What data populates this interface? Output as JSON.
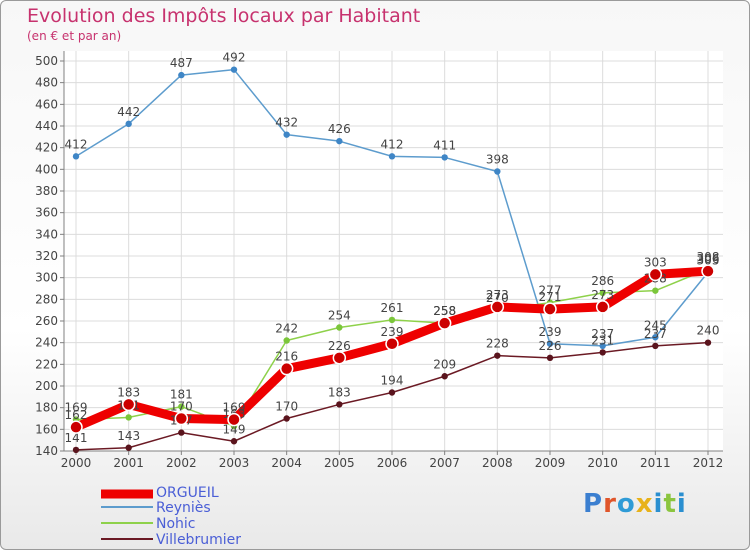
{
  "header": {
    "title": "Evolution des Impôts locaux par Habitant",
    "subtitle": "(en € et par an)"
  },
  "logo": {
    "text": "Proxiti",
    "letter_colors": [
      "#3b7fd0",
      "#e0552a",
      "#2f9bd6",
      "#e8b21a",
      "#2a8fd0",
      "#8bc53f",
      "#2a8fd0"
    ]
  },
  "colors": {
    "label": "#444444",
    "axis": "#808080",
    "grid": "#dcdcdc",
    "legend_text": "#4a5ed6"
  },
  "chart_data": {
    "type": "line",
    "x": [
      "2000",
      "2001",
      "2002",
      "2003",
      "2004",
      "2005",
      "2006",
      "2007",
      "2008",
      "2009",
      "2010",
      "2011",
      "2012"
    ],
    "ylim": [
      140,
      500
    ],
    "yticks": [
      140,
      160,
      180,
      200,
      220,
      240,
      260,
      280,
      300,
      320,
      340,
      360,
      380,
      400,
      420,
      440,
      460,
      480,
      500
    ],
    "grid": true,
    "legend_position": "bottom-left",
    "series": [
      {
        "name": "Reyniès",
        "color": "#5d9ccd",
        "point_color": "#3f86c6",
        "values": [
          412,
          442,
          487,
          492,
          432,
          426,
          412,
          411,
          398,
          239,
          237,
          245,
          305
        ]
      },
      {
        "name": "Nohic",
        "color": "#8ed14a",
        "point_color": "#7bc63a",
        "values": [
          169,
          171,
          181,
          163,
          242,
          254,
          261,
          258,
          270,
          277,
          286,
          288,
          308
        ]
      },
      {
        "name": "Villebrumier",
        "color": "#6b1a24",
        "point_color": "#5a141d",
        "values": [
          141,
          143,
          157,
          149,
          170,
          183,
          194,
          209,
          228,
          226,
          231,
          237,
          240
        ]
      },
      {
        "name": "ORGUEIL",
        "color": "#ee0000",
        "point_color": "#cc0000",
        "values": [
          162,
          183,
          170,
          169,
          216,
          226,
          239,
          258,
          273,
          271,
          273,
          303,
          306
        ]
      }
    ],
    "legend": [
      "ORGUEIL",
      "Reyniès",
      "Nohic",
      "Villebrumier"
    ]
  }
}
